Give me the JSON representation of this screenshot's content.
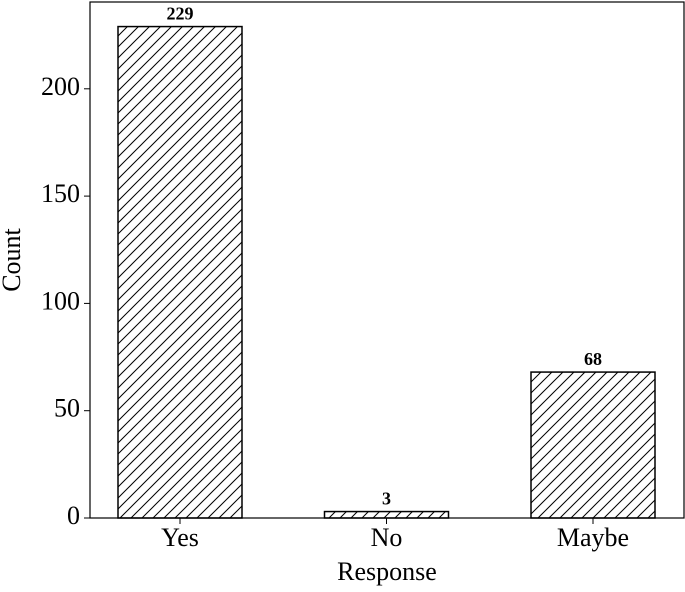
{
  "chart_data": {
    "type": "bar",
    "xlabel": "Response",
    "ylabel": "Count",
    "categories": [
      "Yes",
      "No",
      "Maybe"
    ],
    "values": [
      229,
      3,
      68
    ],
    "color": "#ffffff",
    "edgecolor": "#000000",
    "hatch": "//",
    "ylim": [
      0,
      240.45
    ],
    "yticks": [
      0,
      50,
      100,
      150,
      200
    ],
    "grid": false
  }
}
